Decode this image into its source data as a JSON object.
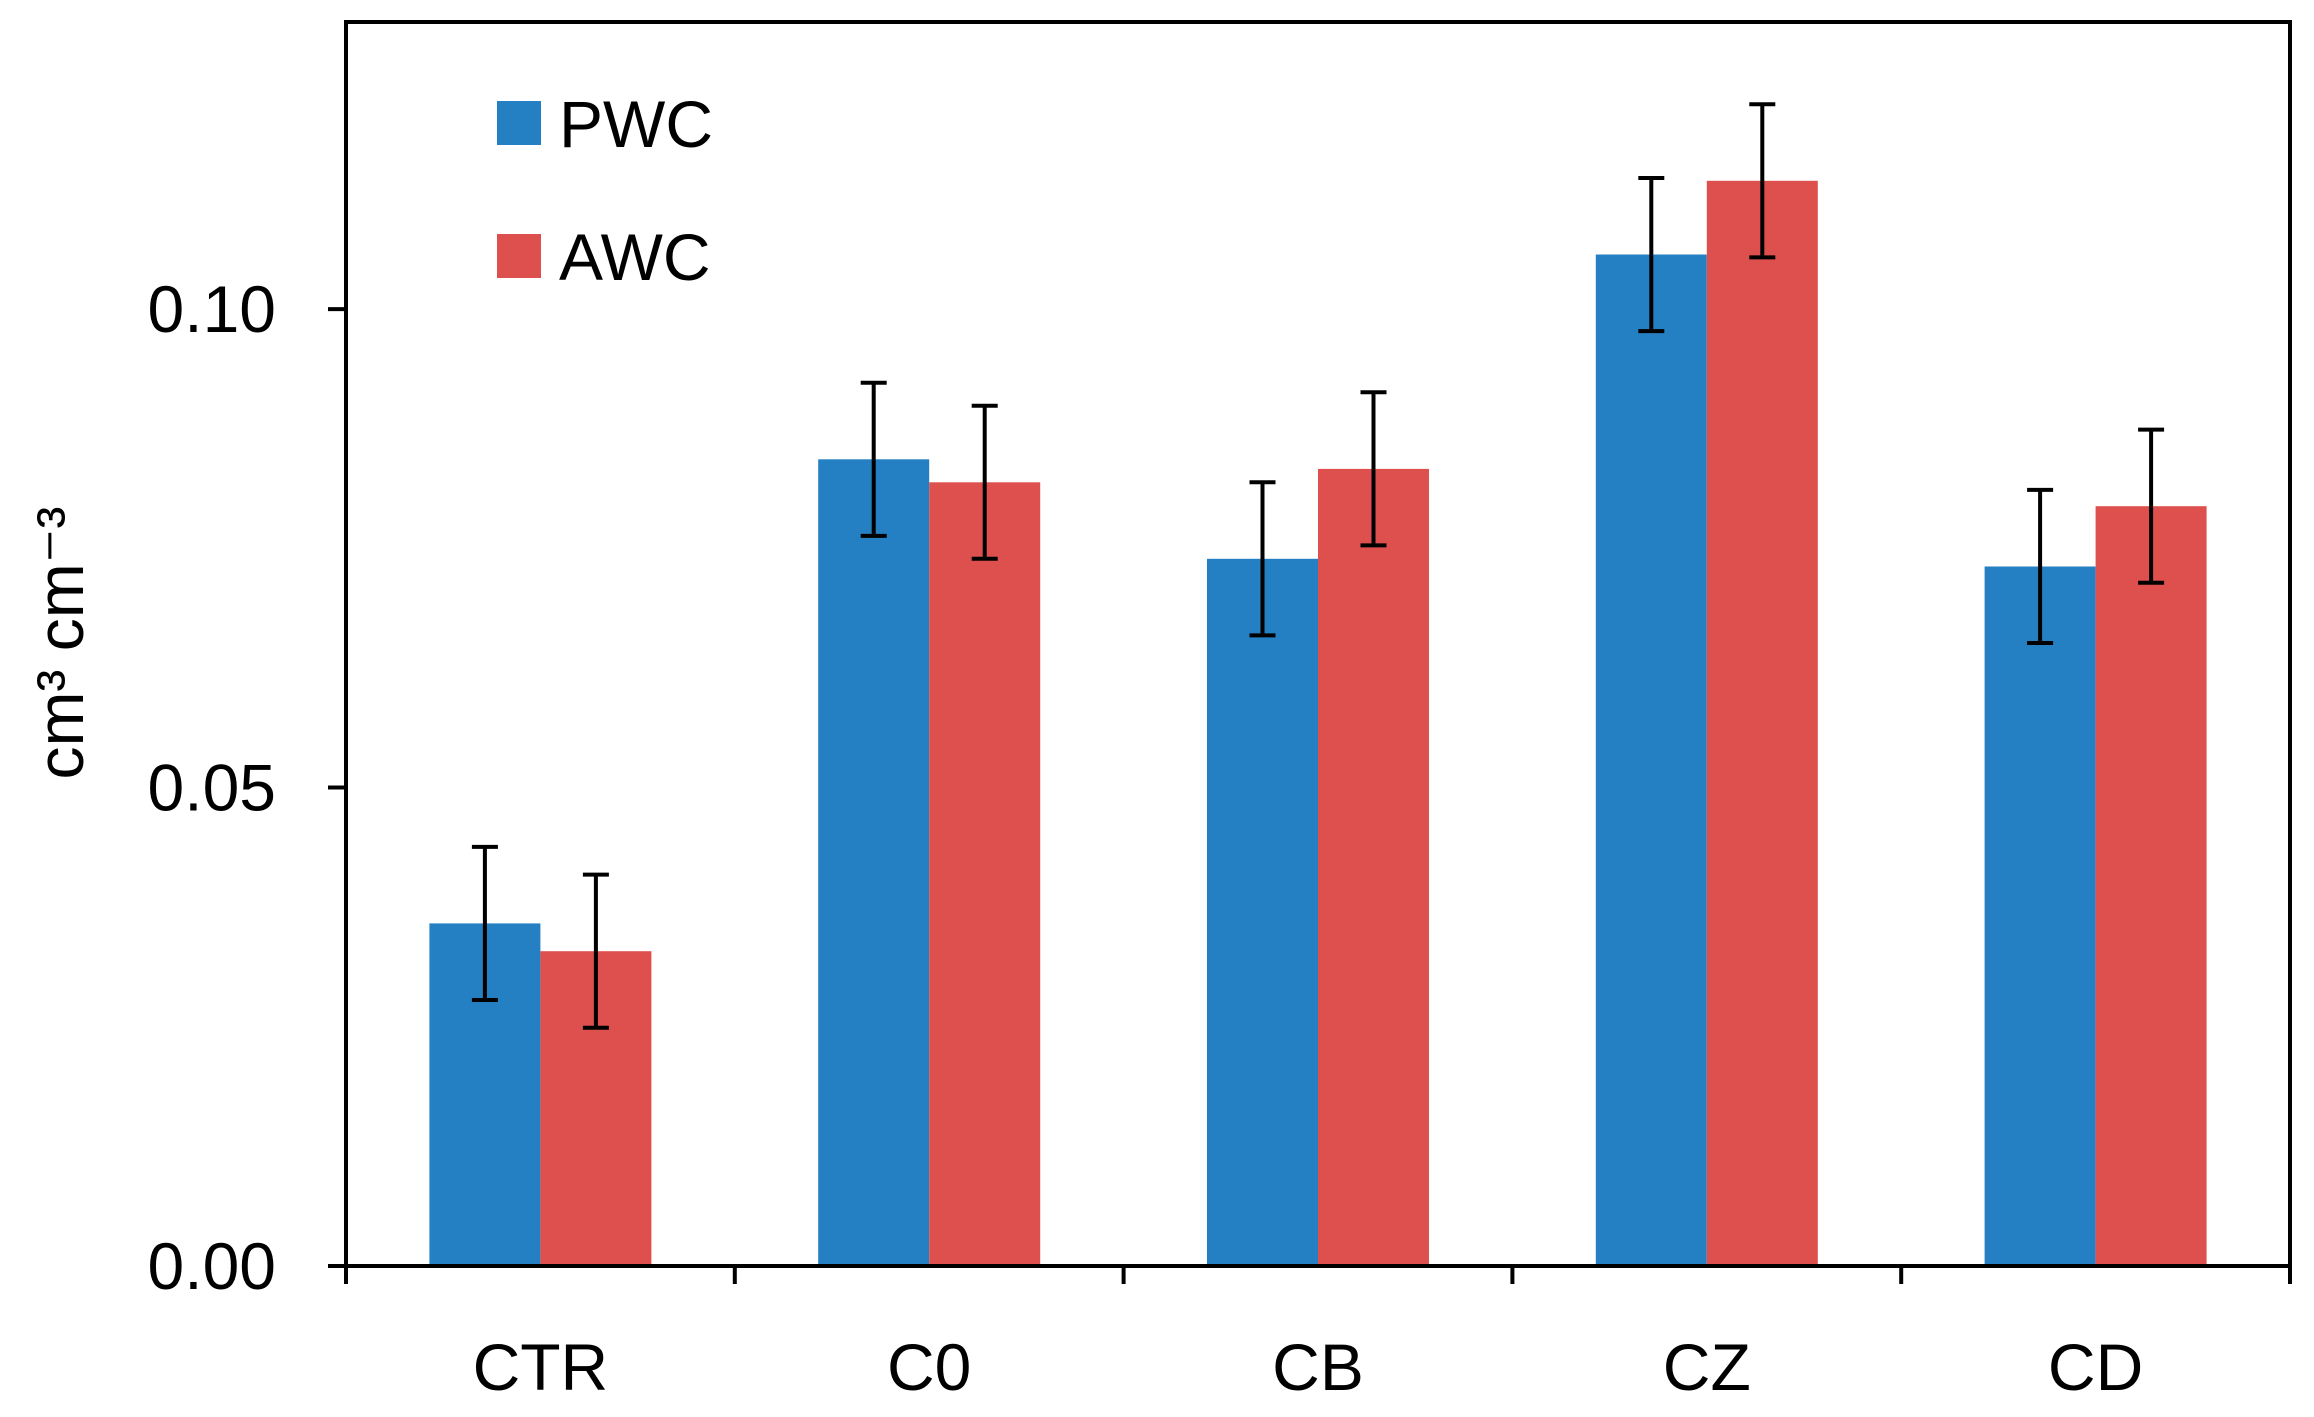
{
  "chart_data": {
    "type": "bar",
    "categories": [
      "CTR",
      "C0",
      "CB",
      "CZ",
      "CD"
    ],
    "series": [
      {
        "name": "PWC",
        "color": "#2580c3",
        "values": [
          0.0358,
          0.0843,
          0.0739,
          0.1057,
          0.0731
        ],
        "errors": [
          0.008,
          0.008,
          0.008,
          0.008,
          0.008
        ]
      },
      {
        "name": "AWC",
        "color": "#de504e",
        "values": [
          0.0329,
          0.0819,
          0.0833,
          0.1134,
          0.0794
        ],
        "errors": [
          0.008,
          0.008,
          0.008,
          0.008,
          0.008
        ]
      }
    ],
    "ylabel": "cm³ cm⁻³",
    "yticks": [
      "0.00",
      "0.05",
      "0.10"
    ],
    "ylim": [
      0,
      0.13
    ],
    "legend_position": "top-left",
    "grid": false,
    "error_bars": true
  }
}
